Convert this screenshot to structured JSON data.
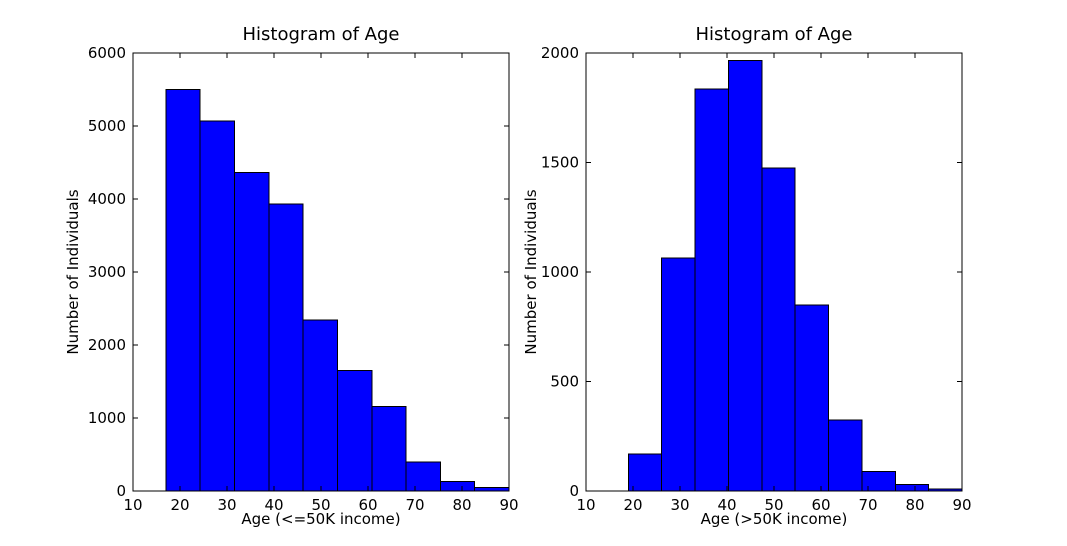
{
  "colors": {
    "background": "#ffffff",
    "bar_fill": "#0000ff",
    "bar_edge": "#000000",
    "axis": "#000000",
    "text": "#000000"
  },
  "chart_data": [
    {
      "type": "bar",
      "subtype": "histogram",
      "title": "Histogram of Age",
      "xlabel": "Age (<=50K income)",
      "ylabel": "Number of Individuals",
      "xlim": [
        10,
        90
      ],
      "ylim": [
        0,
        6000
      ],
      "xticks": [
        10,
        20,
        30,
        40,
        50,
        60,
        70,
        80,
        90
      ],
      "yticks": [
        0,
        1000,
        2000,
        3000,
        4000,
        5000,
        6000
      ],
      "grid": false,
      "legend": null,
      "bin_start": 17,
      "bin_end": 90,
      "bin_width": 7.3,
      "values": [
        5500,
        5070,
        4360,
        3930,
        2345,
        1650,
        1160,
        395,
        130,
        50
      ]
    },
    {
      "type": "bar",
      "subtype": "histogram",
      "title": "Histogram of Age",
      "xlabel": "Age (>50K income)",
      "ylabel": "Number of Individuals",
      "xlim": [
        10,
        90
      ],
      "ylim": [
        0,
        2000
      ],
      "xticks": [
        10,
        20,
        30,
        40,
        50,
        60,
        70,
        80,
        90
      ],
      "yticks": [
        0,
        500,
        1000,
        1500,
        2000
      ],
      "grid": false,
      "legend": null,
      "bin_start": 19,
      "bin_end": 90,
      "bin_width": 7.1,
      "values": [
        170,
        1065,
        1835,
        1965,
        1475,
        850,
        325,
        90,
        30,
        10
      ]
    }
  ]
}
